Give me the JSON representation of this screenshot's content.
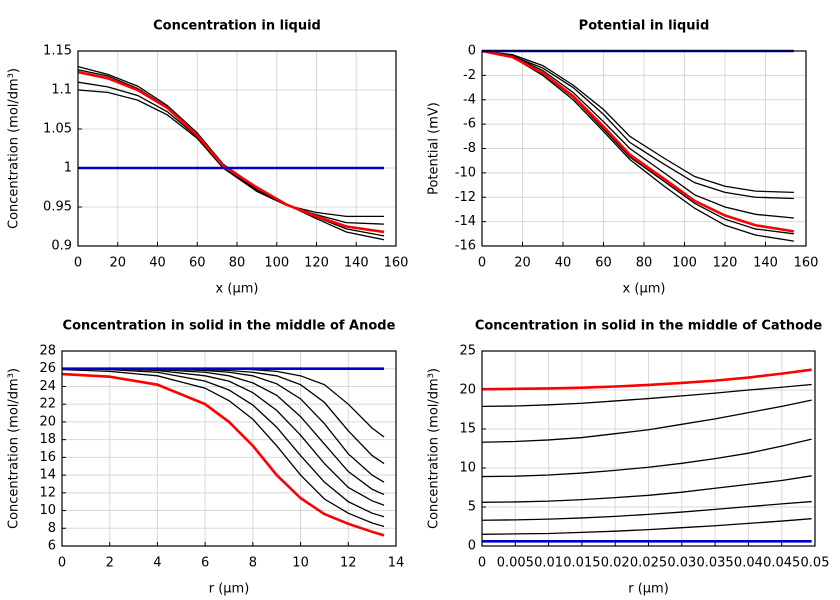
{
  "chart_data": [
    {
      "type": "line",
      "title": "Concentration in liquid",
      "x_label": "x (µm)",
      "y_label": "Concentration (mol/dm³)",
      "x": [
        0,
        15,
        30,
        45,
        60,
        73,
        90,
        105,
        120,
        135,
        154
      ],
      "xlim": [
        0,
        160
      ],
      "xticks": [
        0,
        20,
        40,
        60,
        80,
        100,
        120,
        140,
        160
      ],
      "ylim": [
        0.9,
        1.15
      ],
      "yticks": [
        0.9,
        0.95,
        1,
        1.05,
        1.1,
        1.15
      ],
      "grid": true,
      "series": [
        {
          "color": "#000000",
          "values": [
            1.13,
            1.12,
            1.105,
            1.08,
            1.045,
            1.005,
            0.975,
            0.953,
            0.935,
            0.918,
            0.908
          ]
        },
        {
          "color": "#000000",
          "values": [
            1.126,
            1.118,
            1.102,
            1.078,
            1.043,
            1.004,
            0.975,
            0.953,
            0.937,
            0.922,
            0.913
          ]
        },
        {
          "color": "#000000",
          "values": [
            1.11,
            1.104,
            1.093,
            1.072,
            1.04,
            1.002,
            0.972,
            0.952,
            0.94,
            0.93,
            0.928
          ]
        },
        {
          "color": "#000000",
          "values": [
            1.1,
            1.097,
            1.087,
            1.068,
            1.038,
            1.0,
            0.97,
            0.952,
            0.943,
            0.938,
            0.938
          ]
        },
        {
          "color": "#ff0000",
          "values": [
            1.123,
            1.115,
            1.1,
            1.077,
            1.042,
            1.003,
            0.975,
            0.953,
            0.938,
            0.925,
            0.918
          ]
        },
        {
          "color": "#0000cc",
          "values": [
            1,
            1,
            1,
            1,
            1,
            1,
            1,
            1,
            1,
            1,
            1
          ]
        }
      ]
    },
    {
      "type": "line",
      "title": "Potential in liquid",
      "x_label": "x (µm)",
      "y_label": "Potential (mV)",
      "x": [
        0,
        15,
        30,
        45,
        60,
        73,
        90,
        105,
        120,
        135,
        154
      ],
      "xlim": [
        0,
        160
      ],
      "xticks": [
        0,
        20,
        40,
        60,
        80,
        100,
        120,
        140,
        160
      ],
      "ylim": [
        -16,
        0
      ],
      "yticks": [
        -16,
        -14,
        -12,
        -10,
        -8,
        -6,
        -4,
        -2,
        0
      ],
      "grid": true,
      "series": [
        {
          "color": "#000000",
          "values": [
            0,
            -0.3,
            -1.2,
            -2.8,
            -4.8,
            -7.0,
            -8.8,
            -10.3,
            -11.1,
            -11.5,
            -11.6
          ]
        },
        {
          "color": "#000000",
          "values": [
            0,
            -0.4,
            -1.4,
            -3.0,
            -5.2,
            -7.5,
            -9.3,
            -10.8,
            -11.6,
            -12.0,
            -12.1
          ]
        },
        {
          "color": "#000000",
          "values": [
            0,
            -0.4,
            -1.6,
            -3.4,
            -5.8,
            -8.0,
            -10.0,
            -11.8,
            -12.8,
            -13.4,
            -13.7
          ]
        },
        {
          "color": "#000000",
          "values": [
            0,
            -0.5,
            -1.9,
            -3.8,
            -6.4,
            -8.7,
            -10.7,
            -12.5,
            -13.8,
            -14.6,
            -15.0
          ]
        },
        {
          "color": "#000000",
          "values": [
            0,
            -0.5,
            -2.0,
            -4.0,
            -6.6,
            -8.9,
            -11.1,
            -12.9,
            -14.3,
            -15.1,
            -15.6
          ]
        },
        {
          "color": "#ff0000",
          "values": [
            0,
            -0.5,
            -1.8,
            -3.7,
            -6.2,
            -8.5,
            -10.5,
            -12.3,
            -13.5,
            -14.3,
            -14.8
          ]
        },
        {
          "color": "#0000cc",
          "values": [
            0,
            0,
            0,
            0,
            0,
            0,
            0,
            0,
            0,
            0,
            0
          ]
        }
      ]
    },
    {
      "type": "line",
      "title": "Concentration in solid in the middle of Anode",
      "x_label": "r (µm)",
      "y_label": "Concentration (mol/dm³)",
      "x": [
        0,
        2,
        4,
        6,
        7,
        8,
        9,
        10,
        11,
        12,
        13,
        13.5
      ],
      "xlim": [
        0,
        14
      ],
      "xticks": [
        0,
        2,
        4,
        6,
        8,
        10,
        12,
        14
      ],
      "ylim": [
        6,
        28
      ],
      "yticks": [
        6,
        8,
        10,
        12,
        14,
        16,
        18,
        20,
        22,
        24,
        26,
        28
      ],
      "grid": true,
      "series": [
        {
          "color": "#000000",
          "values": [
            25.9,
            25.7,
            25.2,
            23.8,
            22.4,
            20.3,
            17.3,
            14.0,
            11.3,
            9.7,
            8.6,
            8.2
          ]
        },
        {
          "color": "#000000",
          "values": [
            26,
            25.9,
            25.6,
            24.6,
            23.6,
            21.9,
            19.4,
            16.2,
            13.2,
            11.0,
            9.7,
            9.3
          ]
        },
        {
          "color": "#000000",
          "values": [
            26,
            26,
            25.8,
            25.2,
            24.6,
            23.3,
            21.3,
            18.5,
            15.3,
            12.6,
            11.1,
            10.6
          ]
        },
        {
          "color": "#000000",
          "values": [
            26,
            26,
            25.9,
            25.6,
            25.2,
            24.4,
            23.0,
            20.6,
            17.5,
            14.4,
            12.4,
            11.8
          ]
        },
        {
          "color": "#000000",
          "values": [
            26,
            26,
            26,
            25.8,
            25.6,
            25.2,
            24.3,
            22.6,
            19.8,
            16.4,
            14.0,
            13.2
          ]
        },
        {
          "color": "#000000",
          "values": [
            26,
            26,
            26,
            25.9,
            25.8,
            25.6,
            25.2,
            24.2,
            22.2,
            19.0,
            16.2,
            15.3
          ]
        },
        {
          "color": "#000000",
          "values": [
            26,
            26,
            26,
            26,
            26,
            25.9,
            25.7,
            25.2,
            24.2,
            22.0,
            19.3,
            18.3
          ]
        },
        {
          "color": "#ff0000",
          "values": [
            25.4,
            25.1,
            24.2,
            22.0,
            20.0,
            17.3,
            14.0,
            11.4,
            9.6,
            8.5,
            7.6,
            7.2
          ]
        },
        {
          "color": "#0000cc",
          "values": [
            26,
            26,
            26,
            26,
            26,
            26,
            26,
            26,
            26,
            26,
            26,
            26
          ]
        }
      ]
    },
    {
      "type": "line",
      "title": "Concentration in solid in the middle of Cathode",
      "x_label": "r (µm)",
      "y_label": "Concentration (mol/dm³)",
      "x": [
        0,
        0.005,
        0.01,
        0.015,
        0.02,
        0.025,
        0.03,
        0.035,
        0.04,
        0.045,
        0.0495
      ],
      "xlim": [
        0,
        0.05
      ],
      "xticks": [
        0,
        0.005,
        0.01,
        0.015,
        0.02,
        0.025,
        0.03,
        0.035,
        0.04,
        0.045,
        0.05
      ],
      "ylim": [
        0,
        25
      ],
      "yticks": [
        0,
        5,
        10,
        15,
        20,
        25
      ],
      "grid": true,
      "series": [
        {
          "color": "#000000",
          "values": [
            17.9,
            17.95,
            18.1,
            18.3,
            18.6,
            18.9,
            19.25,
            19.6,
            20,
            20.35,
            20.7
          ]
        },
        {
          "color": "#000000",
          "values": [
            13.3,
            13.4,
            13.6,
            13.9,
            14.4,
            14.9,
            15.6,
            16.3,
            17.1,
            17.9,
            18.7
          ]
        },
        {
          "color": "#000000",
          "values": [
            8.9,
            8.95,
            9.1,
            9.35,
            9.7,
            10.1,
            10.6,
            11.2,
            11.9,
            12.8,
            13.7
          ]
        },
        {
          "color": "#000000",
          "values": [
            5.6,
            5.65,
            5.75,
            5.95,
            6.2,
            6.5,
            6.9,
            7.4,
            7.9,
            8.4,
            9.0
          ]
        },
        {
          "color": "#000000",
          "values": [
            3.3,
            3.35,
            3.45,
            3.6,
            3.8,
            4.05,
            4.35,
            4.7,
            5.05,
            5.4,
            5.7
          ]
        },
        {
          "color": "#000000",
          "values": [
            1.5,
            1.55,
            1.6,
            1.75,
            1.9,
            2.1,
            2.35,
            2.6,
            2.9,
            3.2,
            3.5
          ]
        },
        {
          "color": "#ff0000",
          "values": [
            20.1,
            20.15,
            20.2,
            20.3,
            20.45,
            20.65,
            20.9,
            21.2,
            21.6,
            22.1,
            22.6
          ]
        },
        {
          "color": "#0000cc",
          "values": [
            0.6,
            0.6,
            0.6,
            0.6,
            0.6,
            0.6,
            0.6,
            0.6,
            0.6,
            0.6,
            0.6
          ]
        }
      ]
    }
  ]
}
